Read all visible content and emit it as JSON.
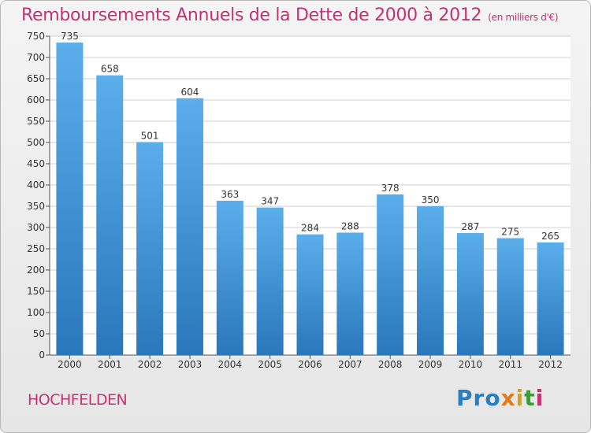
{
  "header": {
    "title": "Remboursements Annuels de la Dette de 2000 à 2012",
    "subtitle": "(en milliers d'€)"
  },
  "footer": {
    "city": "HOCHFELDEN",
    "logo_parts": [
      "Pro",
      "x",
      "i",
      "t",
      "i"
    ]
  },
  "colors": {
    "bar_top": "#5aaeea",
    "bar_bottom": "#2a77bb",
    "accent": "#c2336f"
  },
  "chart_data": {
    "type": "bar",
    "title": "Remboursements Annuels de la Dette de 2000 à 2012",
    "subtitle": "(en milliers d'€)",
    "xlabel": "",
    "ylabel": "",
    "categories": [
      "2000",
      "2001",
      "2002",
      "2003",
      "2004",
      "2005",
      "2006",
      "2007",
      "2008",
      "2009",
      "2010",
      "2011",
      "2012"
    ],
    "values": [
      735,
      658,
      501,
      604,
      363,
      347,
      284,
      288,
      378,
      350,
      287,
      275,
      265
    ],
    "ylim": [
      0,
      750
    ],
    "yticks": [
      0,
      50,
      100,
      150,
      200,
      250,
      300,
      350,
      400,
      450,
      500,
      550,
      600,
      650,
      700,
      750
    ],
    "grid": true
  }
}
